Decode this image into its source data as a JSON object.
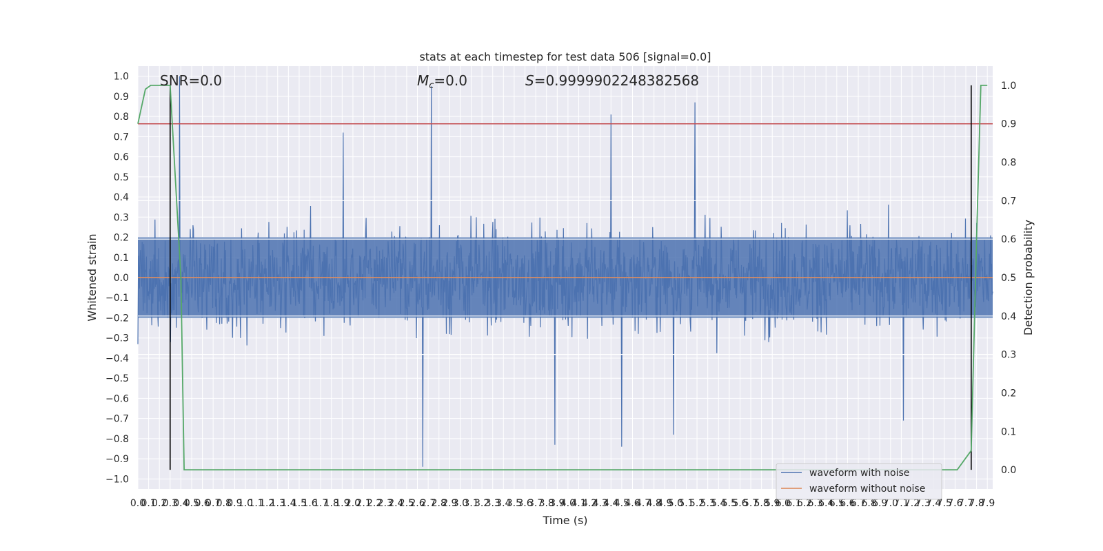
{
  "chart_data": {
    "type": "line",
    "title": "stats at each timestep for test data 506 [signal=0.0]",
    "xlabel": "Time (s)",
    "ylabel": "Whitened strain",
    "y2label": "Detection probability",
    "xlim": [
      0.0,
      7.95
    ],
    "ylim": [
      -1.05,
      1.05
    ],
    "y2lim": [
      -0.05,
      1.05
    ],
    "grid": true,
    "legend_position": "lower right",
    "x_ticks": [
      0.0,
      0.1,
      0.2,
      0.3,
      0.4,
      0.5,
      0.6,
      0.7,
      0.8,
      0.9,
      1.0,
      1.1,
      1.2,
      1.3,
      1.4,
      1.5,
      1.6,
      1.7,
      1.8,
      1.9,
      2.0,
      2.1,
      2.2,
      2.3,
      2.4,
      2.5,
      2.6,
      2.7,
      2.8,
      2.9,
      3.0,
      3.1,
      3.2,
      3.3,
      3.4,
      3.5,
      3.6,
      3.7,
      3.8,
      3.9,
      4.0,
      4.1,
      4.2,
      4.3,
      4.4,
      4.5,
      4.6,
      4.7,
      4.8,
      4.9,
      5.0,
      5.1,
      5.2,
      5.3,
      5.4,
      5.5,
      5.6,
      5.7,
      5.8,
      5.9,
      6.0,
      6.1,
      6.2,
      6.3,
      6.4,
      6.5,
      6.6,
      6.7,
      6.8,
      6.9,
      7.0,
      7.1,
      7.2,
      7.3,
      7.4,
      7.5,
      7.6,
      7.7,
      7.8,
      7.9
    ],
    "y_ticks": [
      "1.0",
      "0.9",
      "0.8",
      "0.7",
      "0.6",
      "0.5",
      "0.4",
      "0.3",
      "0.2",
      "0.1",
      "0.0",
      "−0.1",
      "−0.2",
      "−0.3",
      "−0.4",
      "−0.5",
      "−0.6",
      "−0.7",
      "−0.8",
      "−0.9",
      "−1.0"
    ],
    "y2_ticks": [
      "1.0",
      "0.9",
      "0.8",
      "0.7",
      "0.6",
      "0.5",
      "0.4",
      "0.3",
      "0.2",
      "0.1",
      "0.0"
    ],
    "annotations": {
      "snr": "SNR=0.0",
      "mc_symbol": "M",
      "mc_sub": "c",
      "mc_value": "=0.0",
      "s_symbol": "S",
      "s_value": "=0.9999902248382568"
    },
    "series": [
      {
        "name": "waveform with noise",
        "color": "#4c72b0",
        "axis": "left",
        "description": "dense noise, envelope mostly between -0.5 and 0.5",
        "spikes": [
          {
            "x": 0.39,
            "y": 1.0
          },
          {
            "x": 2.73,
            "y": 0.95
          },
          {
            "x": 2.65,
            "y": -0.94
          },
          {
            "x": 5.18,
            "y": 0.87
          },
          {
            "x": 4.4,
            "y": 0.81
          },
          {
            "x": 4.5,
            "y": -0.84
          },
          {
            "x": 3.88,
            "y": -0.83
          },
          {
            "x": 4.98,
            "y": -0.78
          },
          {
            "x": 1.91,
            "y": 0.72
          },
          {
            "x": 7.12,
            "y": -0.71
          }
        ]
      },
      {
        "name": "waveform without noise",
        "color": "#dd8452",
        "axis": "left",
        "y": 0.0
      },
      {
        "name": "detection probability",
        "color": "#55a868",
        "axis": "right",
        "points": [
          [
            0.0,
            0.9
          ],
          [
            0.07,
            0.99
          ],
          [
            0.12,
            1.0
          ],
          [
            0.25,
            1.0
          ],
          [
            0.3,
            1.0
          ],
          [
            0.4,
            0.5
          ],
          [
            0.43,
            0.0
          ],
          [
            7.62,
            0.0
          ],
          [
            7.75,
            0.05
          ],
          [
            7.8,
            0.6
          ],
          [
            7.84,
            1.0
          ],
          [
            7.9,
            1.0
          ]
        ]
      }
    ],
    "threshold_line": {
      "axis": "right",
      "y": 0.9,
      "color": "#c44e52"
    },
    "markers_vertical": [
      {
        "x": 0.3,
        "color": "#000000"
      },
      {
        "x": 7.75,
        "color": "#000000"
      }
    ],
    "white_lines_right": [
      0.7,
      0.6,
      0.5,
      0.4,
      0.3
    ]
  }
}
